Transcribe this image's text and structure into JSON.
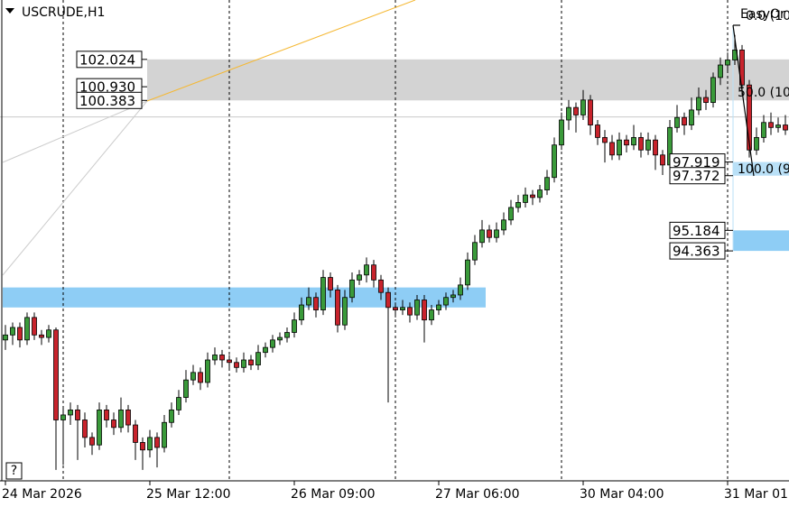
{
  "chart_data": {
    "type": "candlestick",
    "title": "USCRUDE,H1",
    "indicator": "EasyOr",
    "help": "?",
    "categories": [
      "24 Mar 2026",
      null,
      null,
      null,
      null,
      null,
      null,
      null,
      null,
      null,
      null,
      null,
      null,
      null,
      null,
      null,
      null,
      null,
      null,
      null,
      "25 Mar 12:00",
      null,
      null,
      null,
      null,
      null,
      null,
      null,
      null,
      null,
      null,
      null,
      null,
      null,
      null,
      null,
      null,
      null,
      null,
      null,
      "26 Mar 09:00",
      null,
      null,
      null,
      null,
      null,
      null,
      null,
      null,
      null,
      null,
      null,
      null,
      null,
      null,
      null,
      null,
      null,
      null,
      null,
      "27 Mar 06:00",
      null,
      null,
      null,
      null,
      null,
      null,
      null,
      null,
      null,
      null,
      null,
      null,
      null,
      null,
      null,
      null,
      null,
      null,
      null,
      "30 Mar 04:00",
      null,
      null,
      null,
      null,
      null,
      null,
      null,
      null,
      null,
      null,
      null,
      null,
      null,
      null,
      null,
      null,
      null,
      null,
      null,
      "31 Mar 01:00",
      null,
      null,
      null,
      null,
      null,
      null,
      null,
      null
    ],
    "ohlc": [
      [
        90.8,
        91.4,
        90.4,
        91.0
      ],
      [
        91.0,
        91.5,
        90.6,
        91.3
      ],
      [
        91.3,
        91.5,
        90.5,
        90.8
      ],
      [
        90.8,
        91.9,
        90.6,
        91.7
      ],
      [
        91.7,
        91.9,
        90.8,
        91.0
      ],
      [
        91.0,
        91.2,
        90.6,
        90.9
      ],
      [
        90.9,
        91.4,
        90.7,
        91.2
      ],
      [
        91.2,
        91.3,
        85.6,
        87.6
      ],
      [
        87.6,
        88.1,
        85.8,
        87.8
      ],
      [
        87.8,
        88.3,
        87.4,
        88.0
      ],
      [
        88.0,
        88.2,
        86.0,
        87.6
      ],
      [
        87.6,
        87.9,
        86.5,
        86.9
      ],
      [
        86.9,
        87.1,
        86.2,
        86.6
      ],
      [
        86.6,
        88.3,
        86.4,
        88.0
      ],
      [
        88.0,
        88.2,
        87.3,
        87.6
      ],
      [
        87.6,
        87.9,
        87.0,
        87.3
      ],
      [
        87.3,
        88.5,
        87.1,
        88.0
      ],
      [
        88.0,
        88.2,
        87.1,
        87.4
      ],
      [
        87.4,
        87.6,
        86.0,
        86.7
      ],
      [
        86.7,
        86.9,
        85.6,
        86.4
      ],
      [
        86.4,
        87.2,
        86.1,
        86.9
      ],
      [
        86.9,
        87.1,
        85.7,
        86.5
      ],
      [
        86.5,
        87.8,
        86.3,
        87.5
      ],
      [
        87.5,
        88.3,
        87.3,
        88.0
      ],
      [
        88.0,
        88.8,
        87.8,
        88.5
      ],
      [
        88.5,
        89.6,
        88.3,
        89.2
      ],
      [
        89.2,
        89.8,
        89.0,
        89.5
      ],
      [
        89.5,
        89.7,
        88.8,
        89.1
      ],
      [
        89.1,
        90.3,
        88.9,
        90.0
      ],
      [
        90.0,
        90.5,
        89.8,
        90.2
      ],
      [
        90.2,
        90.4,
        89.7,
        90.0
      ],
      [
        90.0,
        90.2,
        89.6,
        89.9
      ],
      [
        89.9,
        90.1,
        89.5,
        89.7
      ],
      [
        89.7,
        90.3,
        89.5,
        90.0
      ],
      [
        90.0,
        90.2,
        89.6,
        89.8
      ],
      [
        89.8,
        90.6,
        89.6,
        90.3
      ],
      [
        90.3,
        90.7,
        90.1,
        90.5
      ],
      [
        90.5,
        91.0,
        90.3,
        90.8
      ],
      [
        90.8,
        91.1,
        90.6,
        90.9
      ],
      [
        90.9,
        91.3,
        90.7,
        91.1
      ],
      [
        91.1,
        91.9,
        90.9,
        91.6
      ],
      [
        91.6,
        92.5,
        91.4,
        92.2
      ],
      [
        92.2,
        92.9,
        92.0,
        92.5
      ],
      [
        92.5,
        92.7,
        91.7,
        92.0
      ],
      [
        92.0,
        93.6,
        91.8,
        93.3
      ],
      [
        93.3,
        93.5,
        92.5,
        92.8
      ],
      [
        92.8,
        93.0,
        91.1,
        91.4
      ],
      [
        91.4,
        92.8,
        91.2,
        92.5
      ],
      [
        92.5,
        93.5,
        92.3,
        93.2
      ],
      [
        93.2,
        93.6,
        93.0,
        93.4
      ],
      [
        93.4,
        94.1,
        93.1,
        93.8
      ],
      [
        93.8,
        94.0,
        92.9,
        93.2
      ],
      [
        93.2,
        93.4,
        92.4,
        92.7
      ],
      [
        92.7,
        92.9,
        88.3,
        92.1
      ],
      [
        92.1,
        92.3,
        91.7,
        92.0
      ],
      [
        92.0,
        92.4,
        91.8,
        92.1
      ],
      [
        92.1,
        92.3,
        91.5,
        91.8
      ],
      [
        91.8,
        92.6,
        91.6,
        92.4
      ],
      [
        92.4,
        92.6,
        90.7,
        91.6
      ],
      [
        91.6,
        92.2,
        91.4,
        92.0
      ],
      [
        92.0,
        92.4,
        91.8,
        92.2
      ],
      [
        92.2,
        92.7,
        92.0,
        92.5
      ],
      [
        92.5,
        92.8,
        92.3,
        92.6
      ],
      [
        92.6,
        93.3,
        92.4,
        93.0
      ],
      [
        93.0,
        94.3,
        92.8,
        94.0
      ],
      [
        94.0,
        95.0,
        93.8,
        94.7
      ],
      [
        94.7,
        95.6,
        94.5,
        95.2
      ],
      [
        95.2,
        95.4,
        94.7,
        94.9
      ],
      [
        94.9,
        95.5,
        94.7,
        95.2
      ],
      [
        95.2,
        95.9,
        95.0,
        95.6
      ],
      [
        95.6,
        96.4,
        95.4,
        96.1
      ],
      [
        96.1,
        96.6,
        95.9,
        96.3
      ],
      [
        96.3,
        96.9,
        96.1,
        96.6
      ],
      [
        96.6,
        96.8,
        96.2,
        96.5
      ],
      [
        96.5,
        97.0,
        96.3,
        96.8
      ],
      [
        96.8,
        97.6,
        96.6,
        97.3
      ],
      [
        97.3,
        98.9,
        97.1,
        98.6
      ],
      [
        98.6,
        99.9,
        98.4,
        99.6
      ],
      [
        99.6,
        100.4,
        99.2,
        100.1
      ],
      [
        100.1,
        100.3,
        99.1,
        99.8
      ],
      [
        99.8,
        100.8,
        99.6,
        100.4
      ],
      [
        100.4,
        100.6,
        99.0,
        99.4
      ],
      [
        99.4,
        99.6,
        98.6,
        98.9
      ],
      [
        98.9,
        99.2,
        97.9,
        98.7
      ],
      [
        98.7,
        99.0,
        98.0,
        98.2
      ],
      [
        98.2,
        99.1,
        98.0,
        98.8
      ],
      [
        98.8,
        99.0,
        98.3,
        98.6
      ],
      [
        98.6,
        99.4,
        98.4,
        98.9
      ],
      [
        98.9,
        99.1,
        98.1,
        98.4
      ],
      [
        98.4,
        99.1,
        98.2,
        98.8
      ],
      [
        98.8,
        99.0,
        97.6,
        98.2
      ],
      [
        98.2,
        98.4,
        97.4,
        97.8
      ],
      [
        97.8,
        99.6,
        97.6,
        99.3
      ],
      [
        99.3,
        100.2,
        99.1,
        99.7
      ],
      [
        99.7,
        99.9,
        99.0,
        99.4
      ],
      [
        99.4,
        100.5,
        99.2,
        100.0
      ],
      [
        100.0,
        100.9,
        99.8,
        100.5
      ],
      [
        100.5,
        100.8,
        100.0,
        100.3
      ],
      [
        100.3,
        101.5,
        100.1,
        101.3
      ],
      [
        101.3,
        102.1,
        101.0,
        101.8
      ],
      [
        101.8,
        102.3,
        101.5,
        102.0
      ],
      [
        102.0,
        103.0,
        101.8,
        102.4
      ],
      [
        102.4,
        102.6,
        100.6,
        101.0
      ],
      [
        101.0,
        101.2,
        98.1,
        98.4
      ],
      [
        98.4,
        99.3,
        98.2,
        98.9
      ],
      [
        98.9,
        99.8,
        98.7,
        99.5
      ],
      [
        99.5,
        99.9,
        99.0,
        99.3
      ],
      [
        99.3,
        99.7,
        99.1,
        99.4
      ],
      [
        99.4,
        99.8,
        99.0,
        99.2
      ]
    ],
    "ylim": [
      85.2,
      104.4
    ],
    "up_color": "#3a9a3a",
    "down_color": "#c8232c",
    "levels": [
      {
        "value": 102.024,
        "label": "102.024"
      },
      {
        "value": 100.93,
        "label": "100.930"
      },
      {
        "value": 100.383,
        "label": "100.383"
      },
      {
        "value": 97.919,
        "label": "97.919"
      },
      {
        "value": 97.372,
        "label": "97.372"
      },
      {
        "value": 95.184,
        "label": "95.184"
      },
      {
        "value": 94.363,
        "label": "94.363"
      }
    ],
    "support_zone": [
      92.1,
      92.9
    ],
    "current_price": 99.72,
    "fib_labels": [
      "0.0 (10",
      "50.0 (10",
      "100.0 (9"
    ]
  }
}
